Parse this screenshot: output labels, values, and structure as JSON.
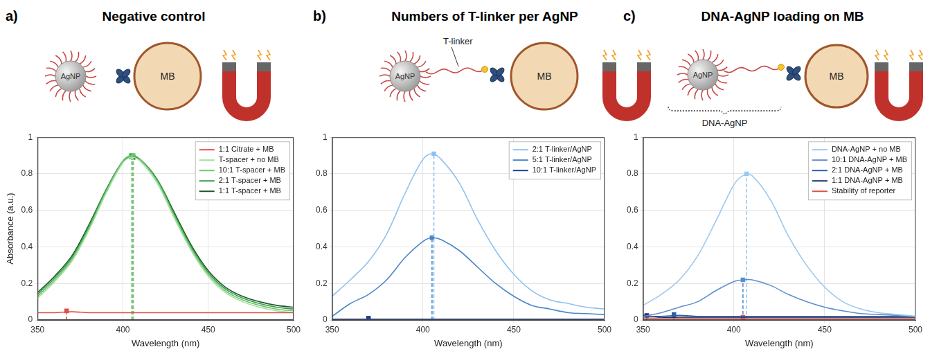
{
  "chart_data": [
    {
      "panel": "a)",
      "title": "Negative control",
      "type": "line",
      "annotations": {
        "particle": "AgNP",
        "bead": "MB"
      },
      "xlabel": "Wavelength (nm)",
      "ylabel": "Absorbance (a.u.)",
      "xlim": [
        350,
        500
      ],
      "xticks": [
        350,
        400,
        450,
        500
      ],
      "ylim": [
        0,
        1
      ],
      "yticks": [
        0,
        0.2,
        0.4,
        0.6,
        0.8,
        1
      ],
      "grid": true,
      "legend": "upper right",
      "marker": "square",
      "x": [
        350,
        360,
        370,
        380,
        390,
        400,
        405,
        410,
        420,
        430,
        440,
        450,
        460,
        470,
        480,
        490,
        500
      ],
      "series": [
        {
          "name": "1:1 Citrate + MB",
          "color": "#e0504a",
          "peak_x": 367,
          "peak_y": 0.05,
          "values": [
            0.04,
            0.04,
            0.045,
            0.04,
            0.04,
            0.04,
            0.04,
            0.04,
            0.04,
            0.04,
            0.04,
            0.04,
            0.04,
            0.04,
            0.04,
            0.04,
            0.04
          ]
        },
        {
          "name": "T-spacer + no MB",
          "color": "#a3e0a3",
          "peak_x": 405,
          "peak_y": 0.89,
          "values": [
            0.12,
            0.21,
            0.32,
            0.49,
            0.69,
            0.86,
            0.89,
            0.87,
            0.75,
            0.56,
            0.38,
            0.24,
            0.15,
            0.1,
            0.07,
            0.05,
            0.04
          ]
        },
        {
          "name": "10:1 T-spacer + MB",
          "color": "#6cc76c",
          "peak_x": 406,
          "peak_y": 0.9,
          "values": [
            0.13,
            0.22,
            0.33,
            0.5,
            0.7,
            0.87,
            0.9,
            0.88,
            0.76,
            0.57,
            0.39,
            0.25,
            0.16,
            0.11,
            0.08,
            0.06,
            0.05
          ]
        },
        {
          "name": "2:1 T-spacer + MB",
          "color": "#3b9b4b",
          "peak_x": 405,
          "peak_y": 0.9,
          "values": [
            0.14,
            0.23,
            0.34,
            0.51,
            0.71,
            0.87,
            0.9,
            0.88,
            0.77,
            0.58,
            0.4,
            0.26,
            0.17,
            0.12,
            0.09,
            0.07,
            0.06
          ]
        },
        {
          "name": "1:1 T-spacer + MB",
          "color": "#1e5a2a",
          "peak_x": 406,
          "peak_y": 0.89,
          "values": [
            0.15,
            0.24,
            0.35,
            0.52,
            0.71,
            0.87,
            0.89,
            0.88,
            0.77,
            0.59,
            0.41,
            0.27,
            0.18,
            0.13,
            0.1,
            0.08,
            0.07
          ]
        }
      ]
    },
    {
      "panel": "b)",
      "title": "Numbers of T-linker per AgNP",
      "type": "line",
      "annotations": {
        "particle": "AgNP",
        "bead": "MB",
        "linker": "T-linker"
      },
      "xlabel": "Wavelength (nm)",
      "xlim": [
        350,
        500
      ],
      "xticks": [
        350,
        400,
        450,
        500
      ],
      "ylim": [
        0,
        1
      ],
      "yticks": [
        0,
        0.2,
        0.4,
        0.6,
        0.8,
        1
      ],
      "grid": true,
      "legend": "upper right",
      "marker": "square",
      "x": [
        350,
        360,
        370,
        380,
        390,
        400,
        405,
        410,
        420,
        430,
        440,
        450,
        460,
        470,
        480,
        490,
        500
      ],
      "series": [
        {
          "name": "2:1 T-linker/AgNP",
          "color": "#8fc1ee",
          "peak_x": 406,
          "peak_y": 0.91,
          "values": [
            0.13,
            0.22,
            0.32,
            0.47,
            0.69,
            0.88,
            0.91,
            0.88,
            0.75,
            0.55,
            0.38,
            0.25,
            0.16,
            0.11,
            0.09,
            0.07,
            0.06
          ]
        },
        {
          "name": "5:1 T-linker/AgNP",
          "color": "#4a86c8",
          "peak_x": 405,
          "peak_y": 0.45,
          "values": [
            0.02,
            0.09,
            0.14,
            0.22,
            0.34,
            0.43,
            0.45,
            0.44,
            0.38,
            0.29,
            0.2,
            0.13,
            0.08,
            0.06,
            0.04,
            0.035,
            0.03
          ]
        },
        {
          "name": "10:1 T-linker/AgNP",
          "color": "#1f3f8f",
          "peak_x": 370,
          "peak_y": 0.01,
          "values": [
            0.005,
            0.005,
            0.005,
            0.005,
            0.005,
            0.005,
            0.005,
            0.005,
            0.005,
            0.005,
            0.005,
            0.005,
            0.005,
            0.005,
            0.005,
            0.005,
            0.005
          ]
        }
      ]
    },
    {
      "panel": "c)",
      "title": "DNA-AgNP loading on MB",
      "type": "line",
      "annotations": {
        "particle": "AgNP",
        "bead": "MB",
        "conjugate": "DNA-AgNP"
      },
      "xlabel": "Wavelength (nm)",
      "xlim": [
        350,
        500
      ],
      "xticks": [
        350,
        400,
        450,
        500
      ],
      "ylim": [
        0,
        1
      ],
      "yticks": [
        0,
        0.2,
        0.4,
        0.6,
        0.8,
        1
      ],
      "grid": true,
      "legend": "upper right",
      "marker": "square",
      "x": [
        350,
        360,
        370,
        380,
        390,
        400,
        405,
        410,
        420,
        430,
        440,
        450,
        460,
        470,
        480,
        490,
        500
      ],
      "series": [
        {
          "name": "DNA-AgNP + no MB",
          "color": "#9cc8ee",
          "peak_x": 407,
          "peak_y": 0.8,
          "values": [
            0.08,
            0.14,
            0.22,
            0.35,
            0.54,
            0.74,
            0.79,
            0.79,
            0.66,
            0.46,
            0.3,
            0.18,
            0.1,
            0.06,
            0.04,
            0.03,
            0.02
          ]
        },
        {
          "name": "10:1 DNA-AgNP + MB",
          "color": "#5b8fcf",
          "peak_x": 405,
          "peak_y": 0.22,
          "values": [
            0.02,
            0.04,
            0.07,
            0.1,
            0.16,
            0.21,
            0.22,
            0.22,
            0.19,
            0.14,
            0.1,
            0.07,
            0.05,
            0.035,
            0.03,
            0.025,
            0.02
          ]
        },
        {
          "name": "2:1 DNA-AgNP + MB",
          "color": "#2f5f9f",
          "peak_x": 367,
          "peak_y": 0.03,
          "values": [
            0.02,
            0.02,
            0.025,
            0.02,
            0.02,
            0.02,
            0.02,
            0.02,
            0.02,
            0.02,
            0.02,
            0.02,
            0.02,
            0.02,
            0.02,
            0.02,
            0.02
          ]
        },
        {
          "name": "1:1 DNA-AgNP + MB",
          "color": "#1a2f6f",
          "peak_x": 352,
          "peak_y": 0.025,
          "values": [
            0.025,
            0.015,
            0.015,
            0.015,
            0.015,
            0.015,
            0.015,
            0.015,
            0.015,
            0.015,
            0.015,
            0.015,
            0.015,
            0.015,
            0.015,
            0.015,
            0.015
          ]
        },
        {
          "name": "Stability of reporter",
          "color": "#e0504a",
          "peak_x": 405,
          "peak_y": 0.015,
          "values": [
            0.01,
            0.01,
            0.01,
            0.01,
            0.01,
            0.01,
            0.01,
            0.01,
            0.01,
            0.01,
            0.01,
            0.01,
            0.01,
            0.01,
            0.01,
            0.01,
            0.01
          ]
        }
      ]
    }
  ]
}
